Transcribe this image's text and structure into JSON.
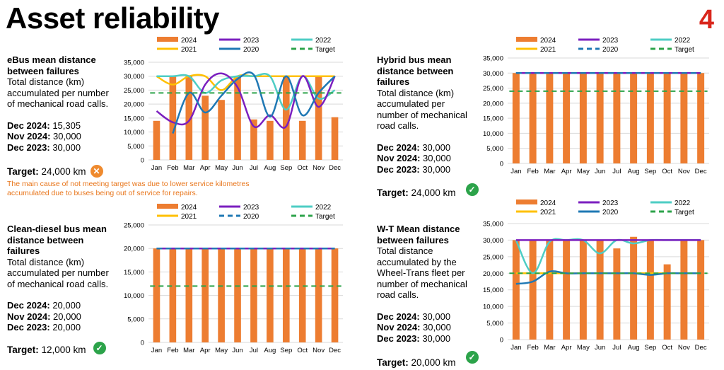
{
  "page": {
    "title": "Asset reliability",
    "number": "4"
  },
  "legend_labels": {
    "2024": "2024",
    "2023": "2023",
    "2022": "2022",
    "2021": "2021",
    "2020": "2020",
    "target": "Target"
  },
  "colors": {
    "2024": "#ed7d31",
    "2023": "#7b1fbf",
    "2022": "#4ecdc4",
    "2021": "#ffc000",
    "2020": "#1f78b4",
    "target": "#2ca34a",
    "ok": "#2ca34a",
    "bad": "#ef8a2e"
  },
  "panels": {
    "ebus": {
      "heading": "eBus mean distance between failures",
      "desc": "Total distance (km) accumulated per number of mechanical road calls.",
      "s1_label": "Dec 2024:",
      "s1_value": " 15,305",
      "s2_label": "Nov 2024:",
      "s2_value": " 30,000",
      "s3_label": "Dec 2023:",
      "s3_value": " 30,000",
      "target_label": "Target:",
      "target_value": " 24,000 km",
      "status": "bad",
      "status_icon": "cross-icon",
      "note": "The main cause of not meeting target was due to lower service kilometres accumulated due to buses being out of service for repairs."
    },
    "hybrid": {
      "heading": "Hybrid bus mean distance between failures",
      "desc": "Total distance (km) accumulated per number of mechanical road calls.",
      "s1_label": "Dec 2024:",
      "s1_value": " 30,000",
      "s2_label": "Nov 2024:",
      "s2_value": " 30,000",
      "s3_label": "Dec 2023:",
      "s3_value": " 30,000",
      "target_label": "Target:",
      "target_value": " 24,000 km",
      "status": "ok",
      "status_icon": "check-icon"
    },
    "diesel": {
      "heading": "Clean-diesel bus mean distance between failures",
      "desc": "Total distance (km) accumulated per number of mechanical road calls.",
      "s1_label": "Dec 2024:",
      "s1_value": " 20,000",
      "s2_label": "Nov 2024:",
      "s2_value": " 20,000",
      "s3_label": "Dec 2023:",
      "s3_value": " 20,000",
      "target_label": "Target:",
      "target_value": " 12,000 km",
      "status": "ok",
      "status_icon": "check-icon"
    },
    "wt": {
      "heading": "W-T Mean distance between failures",
      "desc": "Total distance accumulated by the Wheel-Trans fleet per number of mechanical road calls.",
      "s1_label": "Dec 2024:",
      "s1_value": " 30,000",
      "s2_label": "Nov 2024:",
      "s2_value": " 30,000",
      "s3_label": "Dec 2023:",
      "s3_value": " 30,000",
      "target_label": "Target:",
      "target_value": " 20,000 km",
      "status": "ok",
      "status_icon": "check-icon"
    }
  },
  "chart_data": [
    {
      "id": "ebus",
      "type": "bar",
      "categories": [
        "Jan",
        "Feb",
        "Mar",
        "Apr",
        "May",
        "Jun",
        "Jul",
        "Aug",
        "Sep",
        "Oct",
        "Nov",
        "Dec"
      ],
      "ylim": [
        0,
        35000
      ],
      "yticks": [
        "0",
        "5,000",
        "10,000",
        "15,000",
        "20,000",
        "25,000",
        "30,000",
        "35,000"
      ],
      "bars": {
        "name": "2024",
        "values": [
          14000,
          30000,
          30000,
          23000,
          21500,
          30000,
          14500,
          14000,
          30000,
          14000,
          30000,
          15305
        ]
      },
      "lines": [
        {
          "name": "2023",
          "values": [
            17500,
            13500,
            14000,
            27000,
            31000,
            26000,
            12000,
            16000,
            12000,
            30000,
            19000,
            30000
          ],
          "smooth": true
        },
        {
          "name": "2022",
          "values": [
            30000,
            30000,
            30000,
            24000,
            28500,
            30000,
            30000,
            30000,
            18000,
            30000,
            22000,
            25000
          ],
          "smooth": true
        },
        {
          "name": "2021",
          "values": [
            30000,
            27000,
            30000,
            30000,
            25000,
            30000,
            30000,
            30000,
            30000,
            30000,
            30000,
            30000
          ],
          "smooth": true
        },
        {
          "name": "2020",
          "values": [
            null,
            9500,
            24000,
            17000,
            23000,
            29000,
            30500,
            15500,
            30000,
            16000,
            24000,
            30000
          ],
          "smooth": true
        }
      ],
      "target": 24000
    },
    {
      "id": "hybrid",
      "type": "bar",
      "categories": [
        "Jan",
        "Feb",
        "Mar",
        "Apr",
        "May",
        "Jun",
        "Jul",
        "Aug",
        "Sep",
        "Oct",
        "Nov",
        "Dec"
      ],
      "ylim": [
        0,
        35000
      ],
      "yticks": [
        "0",
        "5,000",
        "10,000",
        "15,000",
        "20,000",
        "25,000",
        "30,000",
        "35,000"
      ],
      "bars": {
        "name": "2024",
        "values": [
          30000,
          30000,
          30000,
          30000,
          30000,
          30000,
          30000,
          30000,
          30000,
          30000,
          30000,
          30000
        ]
      },
      "lines": [
        {
          "name": "2023",
          "values": [
            30000,
            30000,
            30000,
            30000,
            30000,
            30000,
            30000,
            30000,
            30000,
            30000,
            30000,
            30000
          ]
        },
        {
          "name": "2022",
          "values": [
            30000,
            30000,
            30000,
            30000,
            30000,
            30000,
            30000,
            30000,
            30000,
            30000,
            30000,
            30000
          ]
        },
        {
          "name": "2021",
          "values": [
            30000,
            30000,
            30000,
            30000,
            30000,
            30000,
            30000,
            30000,
            30000,
            30000,
            30000,
            30000
          ]
        },
        {
          "name": "2020",
          "values": [
            30000,
            30000,
            30000,
            30000,
            30000,
            30000,
            30000,
            30000,
            30000,
            30000,
            30000,
            30000
          ],
          "dashed": true
        }
      ],
      "target": 24000
    },
    {
      "id": "diesel",
      "type": "bar",
      "categories": [
        "Jan",
        "Feb",
        "Mar",
        "Apr",
        "May",
        "Jun",
        "Jul",
        "Aug",
        "Sep",
        "Oct",
        "Nov",
        "Dec"
      ],
      "ylim": [
        0,
        25000
      ],
      "yticks": [
        "0",
        "5,000",
        "10,000",
        "15,000",
        "20,000",
        "25,000"
      ],
      "bars": {
        "name": "2024",
        "values": [
          20000,
          20000,
          20000,
          20000,
          20000,
          20000,
          20000,
          20000,
          20000,
          20000,
          20000,
          20000
        ]
      },
      "lines": [
        {
          "name": "2023",
          "values": [
            20000,
            20000,
            20000,
            20000,
            20000,
            20000,
            20000,
            20000,
            20000,
            20000,
            20000,
            20000
          ]
        },
        {
          "name": "2022",
          "values": [
            20000,
            20000,
            20000,
            20000,
            20000,
            20000,
            20000,
            20000,
            20000,
            20000,
            20000,
            20000
          ]
        },
        {
          "name": "2021",
          "values": [
            20000,
            20000,
            20000,
            20000,
            20000,
            20000,
            20000,
            20000,
            20000,
            20000,
            20000,
            20000
          ]
        },
        {
          "name": "2020",
          "values": [
            20000,
            20000,
            20000,
            20000,
            20000,
            20000,
            20000,
            20000,
            20000,
            20000,
            20000,
            20000
          ],
          "dashed": true
        }
      ],
      "target": 12000
    },
    {
      "id": "wt",
      "type": "bar",
      "categories": [
        "Jan",
        "Feb",
        "Mar",
        "Apr",
        "May",
        "Jun",
        "Jul",
        "Aug",
        "Sep",
        "Oct",
        "Nov",
        "Dec"
      ],
      "ylim": [
        0,
        35000
      ],
      "yticks": [
        "0",
        "5,000",
        "10,000",
        "15,000",
        "20,000",
        "25,000",
        "30,000",
        "35,000"
      ],
      "bars": {
        "name": "2024",
        "values": [
          30000,
          30000,
          30000,
          30000,
          30000,
          30000,
          27500,
          31000,
          30000,
          22700,
          30000,
          30000
        ]
      },
      "lines": [
        {
          "name": "2023",
          "values": [
            30000,
            30000,
            30000,
            30000,
            30000,
            30000,
            30000,
            30000,
            30000,
            30000,
            30000,
            30000
          ]
        },
        {
          "name": "2022",
          "values": [
            30000,
            20000,
            29500,
            30000,
            30000,
            26000,
            30000,
            29000,
            30000,
            30000,
            30000,
            30000
          ],
          "smooth": true
        },
        {
          "name": "2021",
          "values": [
            20000,
            20000,
            20000,
            20000,
            20000,
            20000,
            20000,
            20000,
            20000,
            20000,
            20000,
            20000
          ]
        },
        {
          "name": "2020",
          "values": [
            16800,
            17500,
            20500,
            20000,
            20000,
            20000,
            20000,
            20000,
            19500,
            20000,
            20000,
            20000
          ],
          "smooth": true
        }
      ],
      "target": 20000
    }
  ]
}
